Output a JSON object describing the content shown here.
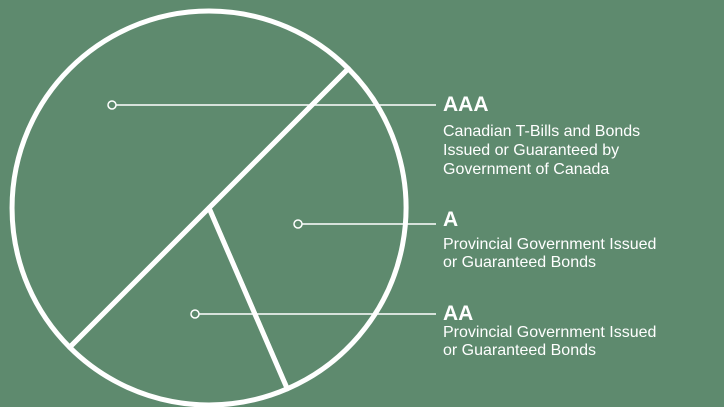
{
  "chart_data": {
    "type": "pie",
    "categories": [
      "AAA",
      "A",
      "AA"
    ],
    "descriptions": [
      [
        "Canadian T-Bills and Bonds",
        "Issued or Guaranteed by",
        "Government of Canada"
      ],
      [
        "Provincial Government Issued",
        "or Guaranteed Bonds"
      ],
      [
        "Provincial Government Issued",
        "or Guaranteed Bonds"
      ]
    ],
    "values": [
      50,
      31,
      19
    ],
    "color": "#ffffff"
  }
}
